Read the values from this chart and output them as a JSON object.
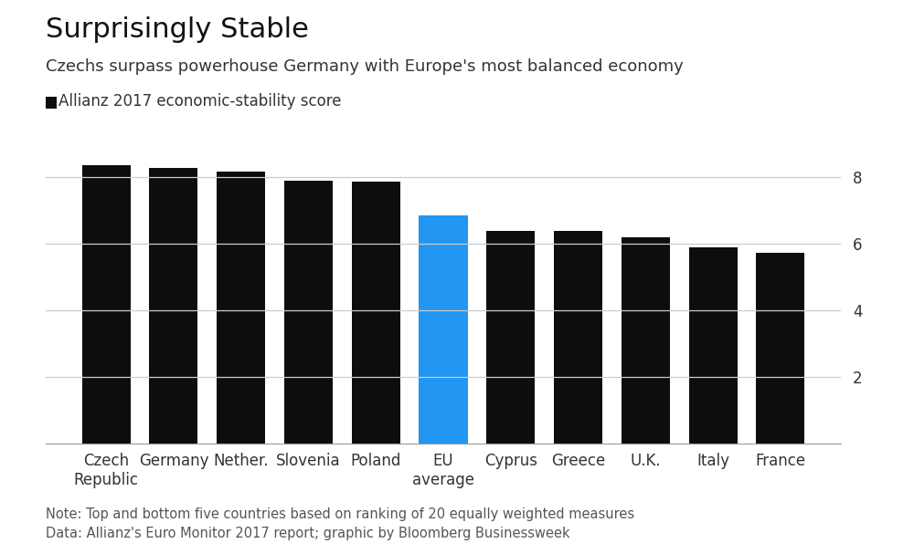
{
  "title": "Surprisingly Stable",
  "subtitle": "Czechs surpass powerhouse Germany with Europe's most balanced economy",
  "legend_label": "Allianz 2017 economic-stability score",
  "note_line1": "Note: Top and bottom five countries based on ranking of 20 equally weighted measures",
  "note_line2": "Data: Allianz's Euro Monitor 2017 report; graphic by Bloomberg Businessweek",
  "categories": [
    "Czech\nRepublic",
    "Germany",
    "Nether.",
    "Slovenia",
    "Poland",
    "EU\naverage",
    "Cyprus",
    "Greece",
    "U.K.",
    "Italy",
    "France"
  ],
  "values": [
    8.35,
    8.28,
    8.18,
    7.9,
    7.88,
    6.85,
    6.38,
    6.38,
    6.2,
    5.88,
    5.72
  ],
  "bar_colors": [
    "#0d0d0d",
    "#0d0d0d",
    "#0d0d0d",
    "#0d0d0d",
    "#0d0d0d",
    "#2196F3",
    "#0d0d0d",
    "#0d0d0d",
    "#0d0d0d",
    "#0d0d0d",
    "#0d0d0d"
  ],
  "ylim": [
    0,
    9.0
  ],
  "yticks": [
    2,
    4,
    6,
    8
  ],
  "background_color": "#ffffff",
  "title_fontsize": 22,
  "subtitle_fontsize": 13,
  "tick_fontsize": 12,
  "note_fontsize": 10.5,
  "legend_fontsize": 12,
  "grid_color": "#cccccc",
  "grid_linewidth": 0.9
}
